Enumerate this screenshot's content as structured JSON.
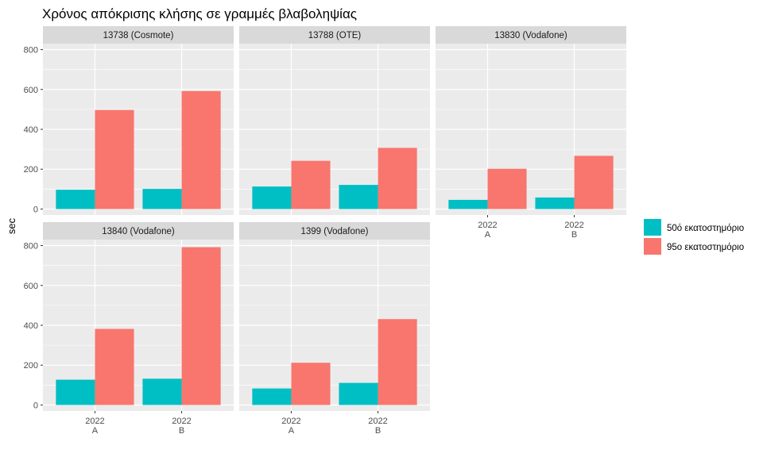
{
  "chart_data": {
    "type": "bar",
    "title": "Χρόνος απόκρισης κλήσης σε γραμμές βλαβοληψίας",
    "xlabel": "",
    "ylabel": "sec",
    "ylim": [
      -30,
      830
    ],
    "yticks": [
      0,
      200,
      400,
      600,
      800
    ],
    "categories": [
      {
        "year": "2022",
        "period": "A"
      },
      {
        "year": "2022",
        "period": "B"
      }
    ],
    "legend": {
      "position": "right",
      "entries": [
        {
          "name": "50ό εκατοστημόριο",
          "color": "#00BFC4"
        },
        {
          "name": "95ο εκατοστημόριο",
          "color": "#F8766D"
        }
      ]
    },
    "grid": true,
    "panels": [
      {
        "label": "13738 (Cosmote)",
        "series": [
          {
            "name": "50ό εκατοστημόριο",
            "values": [
              97,
              101
            ]
          },
          {
            "name": "95ο εκατοστημόριο",
            "values": [
              497,
              592
            ]
          }
        ]
      },
      {
        "label": "13788 (OTE)",
        "series": [
          {
            "name": "50ό εκατοστημόριο",
            "values": [
              113,
              121
            ]
          },
          {
            "name": "95ο εκατοστημόριο",
            "values": [
              242,
              307
            ]
          }
        ]
      },
      {
        "label": "13830 (Vodafone)",
        "series": [
          {
            "name": "50ό εκατοστημόριο",
            "values": [
              46,
              58
            ]
          },
          {
            "name": "95ο εκατοστημόριο",
            "values": [
              202,
              267
            ]
          }
        ]
      },
      {
        "label": "13840 (Vodafone)",
        "series": [
          {
            "name": "50ό εκατοστημόριο",
            "values": [
              127,
              132
            ]
          },
          {
            "name": "95ο εκατοστημόριο",
            "values": [
              382,
              792
            ]
          }
        ]
      },
      {
        "label": "1399 (Vodafone)",
        "series": [
          {
            "name": "50ό εκατοστημόριο",
            "values": [
              83,
              111
            ]
          },
          {
            "name": "95ο εκατοστημόριο",
            "values": [
              212,
              431
            ]
          }
        ]
      }
    ]
  }
}
